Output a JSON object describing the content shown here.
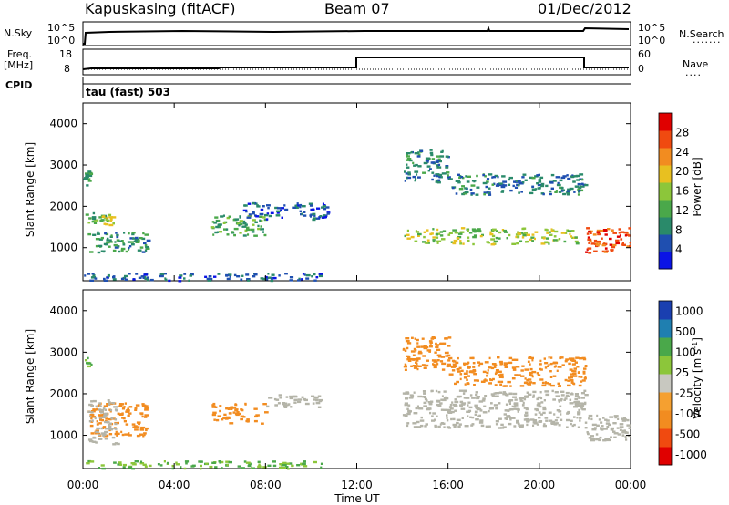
{
  "header": {
    "station": "Kapuskasing (fitACF)",
    "beam": "Beam 07",
    "date": "01/Dec/2012"
  },
  "top_panels": {
    "nsky_label": "N.Sky",
    "nsky_ticks": [
      "10^5",
      "10^0"
    ],
    "nsearch_label": "N.Search",
    "nsearch_ticks": [
      "10^5",
      "10^0"
    ],
    "freq_label": "Freq.",
    "freq_unit": "[MHz]",
    "freq_ticks": [
      "18",
      "8"
    ],
    "nave_label": "Nave",
    "nave_ticks": [
      "60",
      "0"
    ],
    "cpid_label": "CPID",
    "cpid_text": "tau (fast) 503"
  },
  "colors": {
    "power": [
      "#0a14e6",
      "#1f4fb0",
      "#2a8a6a",
      "#4aa84a",
      "#8cc63a",
      "#e8c020",
      "#f28c20",
      "#f04a10",
      "#e00000"
    ],
    "velocity": [
      "#e00000",
      "#f04a10",
      "#f28c20",
      "#f5a030",
      "#c8c8c0",
      "#8cc63a",
      "#4aa84a",
      "#1f7fb0",
      "#1a3fb0"
    ],
    "ground_scatter": "#b4b4a8"
  },
  "chart_data": [
    {
      "type": "line",
      "title": "N.Sky / N.Search",
      "x_range": [
        "00:00",
        "24:00"
      ],
      "y_scale": "log",
      "series": [
        {
          "name": "N.Sky",
          "x": [
            0,
            0.2,
            0.3,
            12,
            13.5,
            21.9,
            22,
            24
          ],
          "y": [
            1,
            1,
            30000,
            30000,
            30000,
            30000,
            60000,
            40000
          ]
        },
        {
          "name": "N.Search",
          "x": [
            0,
            24
          ],
          "y": [
            1,
            1
          ]
        }
      ]
    },
    {
      "type": "line",
      "title": "Freq. / Nave",
      "x_range": [
        "00:00",
        "24:00"
      ],
      "series": [
        {
          "name": "Freq.",
          "x": [
            0,
            0.4,
            6.3,
            12,
            21.9,
            24
          ],
          "y": [
            9.5,
            10,
            10.5,
            16,
            10,
            10
          ]
        },
        {
          "name": "Nave",
          "x": [
            0,
            24
          ],
          "y": [
            8,
            8
          ]
        }
      ]
    },
    {
      "type": "heatmap",
      "xlabel": "Time UT",
      "ylabel": "Slant Range [km]",
      "x_range": [
        "00:00",
        "24:00"
      ],
      "ylim": [
        200,
        4500
      ],
      "yticks": [
        1000,
        2000,
        3000,
        4000
      ],
      "colorbar": {
        "label": "Power [dB]",
        "ticks": [
          4,
          8,
          12,
          16,
          20,
          24,
          28
        ],
        "range": [
          0,
          32
        ]
      },
      "regions": [
        {
          "t": [
            0,
            0.35
          ],
          "r": [
            2500,
            2900
          ],
          "value": 10
        },
        {
          "t": [
            0.1,
            1.3
          ],
          "r": [
            1600,
            1900
          ],
          "value": 12
        },
        {
          "t": [
            0.8,
            1.3
          ],
          "r": [
            1550,
            1850
          ],
          "value": 18
        },
        {
          "t": [
            0.2,
            2.8
          ],
          "r": [
            900,
            1400
          ],
          "value": 10
        },
        {
          "t": [
            5.6,
            8.0
          ],
          "r": [
            1300,
            1800
          ],
          "value": 12
        },
        {
          "t": [
            7.0,
            10.7
          ],
          "r": [
            1700,
            2100
          ],
          "value": 6
        },
        {
          "t": [
            14.0,
            16.0
          ],
          "r": [
            2600,
            3400
          ],
          "value": 8
        },
        {
          "t": [
            16.0,
            22.0
          ],
          "r": [
            2300,
            2800
          ],
          "value": 8
        },
        {
          "t": [
            14.0,
            21.6
          ],
          "r": [
            1100,
            1500
          ],
          "value": 16
        },
        {
          "t": [
            22.0,
            24.0
          ],
          "r": [
            900,
            1500
          ],
          "value": 27
        },
        {
          "t": [
            0,
            10.5
          ],
          "r": [
            220,
            400
          ],
          "value": 6
        }
      ]
    },
    {
      "type": "heatmap",
      "xlabel": "Time UT",
      "ylabel": "Slant Range [km]",
      "x_range": [
        "00:00",
        "24:00"
      ],
      "ylim": [
        200,
        4500
      ],
      "yticks": [
        1000,
        2000,
        3000,
        4000
      ],
      "xticks": [
        "00:00",
        "04:00",
        "08:00",
        "12:00",
        "16:00",
        "20:00",
        "00:00"
      ],
      "colorbar": {
        "label": "Velocity [m s^-1]",
        "ticks": [
          "1000",
          "500",
          "100",
          "25",
          "-25",
          "-100",
          "-500",
          "-1000"
        ]
      },
      "regions": [
        {
          "t": [
            0,
            0.35
          ],
          "r": [
            2500,
            2900
          ],
          "value": 100
        },
        {
          "t": [
            0.2,
            2.8
          ],
          "r": [
            1000,
            1800
          ],
          "value": -300
        },
        {
          "t": [
            0.2,
            1.5
          ],
          "r": [
            800,
            1900
          ],
          "value": 0
        },
        {
          "t": [
            5.6,
            8.0
          ],
          "r": [
            1300,
            1800
          ],
          "value": -200
        },
        {
          "t": [
            8.0,
            10.7
          ],
          "r": [
            1700,
            2000
          ],
          "value": 0
        },
        {
          "t": [
            14.0,
            16.0
          ],
          "r": [
            2600,
            3400
          ],
          "value": -300
        },
        {
          "t": [
            16.0,
            22.0
          ],
          "r": [
            2200,
            2900
          ],
          "value": -400
        },
        {
          "t": [
            14.0,
            22.0
          ],
          "r": [
            1200,
            2100
          ],
          "value": 0
        },
        {
          "t": [
            22.0,
            24.0
          ],
          "r": [
            900,
            1500
          ],
          "value": 0
        },
        {
          "t": [
            0,
            10.5
          ],
          "r": [
            220,
            400
          ],
          "value": 100
        }
      ]
    }
  ]
}
